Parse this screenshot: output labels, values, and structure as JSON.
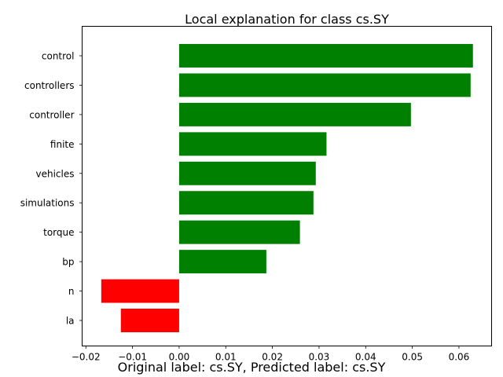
{
  "chart_data": {
    "type": "bar",
    "orientation": "horizontal",
    "title": "Local explanation for class cs.SY",
    "xlabel": "",
    "ylabel": "",
    "categories": [
      "control",
      "controllers",
      "controller",
      "finite",
      "vehicles",
      "simulations",
      "torque",
      "bp",
      "n",
      "la"
    ],
    "values": [
      0.063,
      0.0625,
      0.0497,
      0.0316,
      0.0293,
      0.0288,
      0.0259,
      0.0187,
      -0.0167,
      -0.0125
    ],
    "xlim": [
      -0.0208,
      0.067
    ],
    "xticks": [
      -0.02,
      -0.01,
      0.0,
      0.01,
      0.02,
      0.03,
      0.04,
      0.05,
      0.06
    ],
    "xtick_labels": [
      "−0.02",
      "−0.01",
      "0.00",
      "0.01",
      "0.02",
      "0.03",
      "0.04",
      "0.05",
      "0.06"
    ],
    "grid": false,
    "colors": {
      "positive": "#008000",
      "negative": "#ff0000",
      "axis": "#000000"
    }
  },
  "caption": "Original label: cs.SY, Predicted label: cs.SY"
}
